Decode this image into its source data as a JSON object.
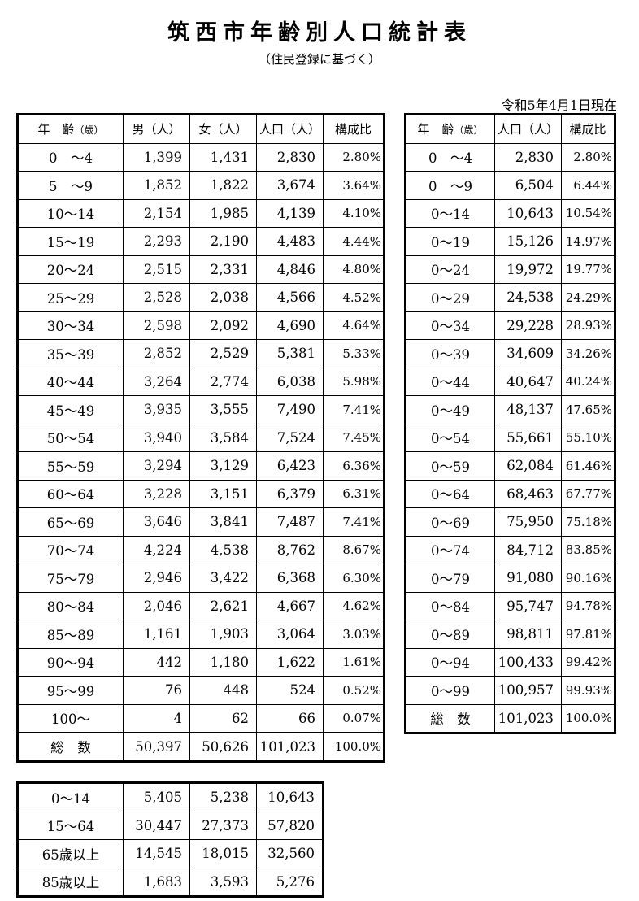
{
  "title": "筑西市年齢別人口統計表",
  "subtitle": "（住民登録に基づく）",
  "as_of": "令和5年4月1日現在",
  "main_table": {
    "headers": {
      "age": "年　齢",
      "age_unit": "（歳）",
      "male": "男（人）",
      "female": "女（人）",
      "population": "人口（人）",
      "ratio": "構成比"
    },
    "rows": [
      {
        "age": "0　～4",
        "male": "1,399",
        "female": "1,431",
        "total": "2,830",
        "ratio": "2.80%"
      },
      {
        "age": "5　～9",
        "male": "1,852",
        "female": "1,822",
        "total": "3,674",
        "ratio": "3.64%"
      },
      {
        "age": "10～14",
        "male": "2,154",
        "female": "1,985",
        "total": "4,139",
        "ratio": "4.10%"
      },
      {
        "age": "15～19",
        "male": "2,293",
        "female": "2,190",
        "total": "4,483",
        "ratio": "4.44%"
      },
      {
        "age": "20～24",
        "male": "2,515",
        "female": "2,331",
        "total": "4,846",
        "ratio": "4.80%"
      },
      {
        "age": "25～29",
        "male": "2,528",
        "female": "2,038",
        "total": "4,566",
        "ratio": "4.52%"
      },
      {
        "age": "30～34",
        "male": "2,598",
        "female": "2,092",
        "total": "4,690",
        "ratio": "4.64%"
      },
      {
        "age": "35～39",
        "male": "2,852",
        "female": "2,529",
        "total": "5,381",
        "ratio": "5.33%"
      },
      {
        "age": "40～44",
        "male": "3,264",
        "female": "2,774",
        "total": "6,038",
        "ratio": "5.98%"
      },
      {
        "age": "45～49",
        "male": "3,935",
        "female": "3,555",
        "total": "7,490",
        "ratio": "7.41%"
      },
      {
        "age": "50～54",
        "male": "3,940",
        "female": "3,584",
        "total": "7,524",
        "ratio": "7.45%"
      },
      {
        "age": "55～59",
        "male": "3,294",
        "female": "3,129",
        "total": "6,423",
        "ratio": "6.36%"
      },
      {
        "age": "60～64",
        "male": "3,228",
        "female": "3,151",
        "total": "6,379",
        "ratio": "6.31%"
      },
      {
        "age": "65～69",
        "male": "3,646",
        "female": "3,841",
        "total": "7,487",
        "ratio": "7.41%"
      },
      {
        "age": "70～74",
        "male": "4,224",
        "female": "4,538",
        "total": "8,762",
        "ratio": "8.67%"
      },
      {
        "age": "75～79",
        "male": "2,946",
        "female": "3,422",
        "total": "6,368",
        "ratio": "6.30%"
      },
      {
        "age": "80～84",
        "male": "2,046",
        "female": "2,621",
        "total": "4,667",
        "ratio": "4.62%"
      },
      {
        "age": "85～89",
        "male": "1,161",
        "female": "1,903",
        "total": "3,064",
        "ratio": "3.03%"
      },
      {
        "age": "90～94",
        "male": "442",
        "female": "1,180",
        "total": "1,622",
        "ratio": "1.61%"
      },
      {
        "age": "95～99",
        "male": "76",
        "female": "448",
        "total": "524",
        "ratio": "0.52%"
      },
      {
        "age": "100～",
        "male": "4",
        "female": "62",
        "total": "66",
        "ratio": "0.07%"
      }
    ],
    "total_row": {
      "age": "総　数",
      "male": "50,397",
      "female": "50,626",
      "total": "101,023",
      "ratio": "100.0%"
    }
  },
  "cumulative_table": {
    "headers": {
      "age": "年　齢",
      "age_unit": "（歳）",
      "population": "人口（人）",
      "ratio": "構成比"
    },
    "rows": [
      {
        "age": "0　～4",
        "total": "2,830",
        "ratio": "2.80%"
      },
      {
        "age": "0　～9",
        "total": "6,504",
        "ratio": "6.44%"
      },
      {
        "age": "0～14",
        "total": "10,643",
        "ratio": "10.54%"
      },
      {
        "age": "0～19",
        "total": "15,126",
        "ratio": "14.97%"
      },
      {
        "age": "0～24",
        "total": "19,972",
        "ratio": "19.77%"
      },
      {
        "age": "0～29",
        "total": "24,538",
        "ratio": "24.29%"
      },
      {
        "age": "0～34",
        "total": "29,228",
        "ratio": "28.93%"
      },
      {
        "age": "0～39",
        "total": "34,609",
        "ratio": "34.26%"
      },
      {
        "age": "0～44",
        "total": "40,647",
        "ratio": "40.24%"
      },
      {
        "age": "0～49",
        "total": "48,137",
        "ratio": "47.65%"
      },
      {
        "age": "0～54",
        "total": "55,661",
        "ratio": "55.10%"
      },
      {
        "age": "0～59",
        "total": "62,084",
        "ratio": "61.46%"
      },
      {
        "age": "0～64",
        "total": "68,463",
        "ratio": "67.77%"
      },
      {
        "age": "0～69",
        "total": "75,950",
        "ratio": "75.18%"
      },
      {
        "age": "0～74",
        "total": "84,712",
        "ratio": "83.85%"
      },
      {
        "age": "0～79",
        "total": "91,080",
        "ratio": "90.16%"
      },
      {
        "age": "0～84",
        "total": "95,747",
        "ratio": "94.78%"
      },
      {
        "age": "0～89",
        "total": "98,811",
        "ratio": "97.81%"
      },
      {
        "age": "0～94",
        "total": "100,433",
        "ratio": "99.42%"
      },
      {
        "age": "0～99",
        "total": "100,957",
        "ratio": "99.93%"
      }
    ],
    "total_row": {
      "age": "総　数",
      "total": "101,023",
      "ratio": "100.0%"
    }
  },
  "summary_table": {
    "rows": [
      {
        "age": "0～14",
        "male": "5,405",
        "female": "5,238",
        "total": "10,643"
      },
      {
        "age": "15～64",
        "male": "30,447",
        "female": "27,373",
        "total": "57,820"
      },
      {
        "age": "65歳以上",
        "male": "14,545",
        "female": "18,015",
        "total": "32,560"
      },
      {
        "age": "85歳以上",
        "male": "1,683",
        "female": "3,593",
        "total": "5,276"
      }
    ]
  }
}
